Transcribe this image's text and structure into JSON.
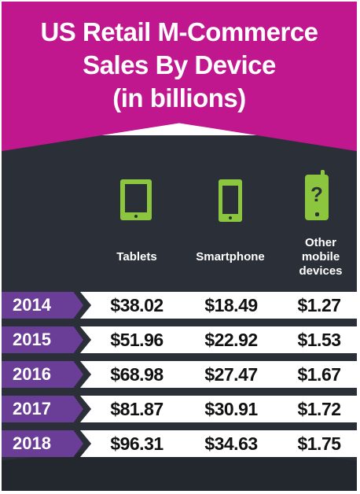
{
  "title_lines": [
    "US Retail M-Commerce",
    "Sales By Device",
    "(in billions)"
  ],
  "colors": {
    "banner": "#c0178f",
    "background": "#2b3038",
    "icon": "#8cc63f",
    "year_tag": "#6a3d96",
    "row": "#ffffff"
  },
  "icons": [
    "tablet-icon",
    "smartphone-icon",
    "other-mobile-device-icon"
  ],
  "chart_data": {
    "type": "table",
    "title": "US Retail M-Commerce Sales By Device (in billions)",
    "columns": [
      "Tablets",
      "Smartphone",
      "Other mobile devices"
    ],
    "rows": [
      {
        "year": "2014",
        "values": [
          "$38.02",
          "$18.49",
          "$1.27"
        ]
      },
      {
        "year": "2015",
        "values": [
          "$51.96",
          "$22.92",
          "$1.53"
        ]
      },
      {
        "year": "2016",
        "values": [
          "$68.98",
          "$27.47",
          "$1.67"
        ]
      },
      {
        "year": "2017",
        "values": [
          "$81.87",
          "$30.91",
          "$1.72"
        ]
      },
      {
        "year": "2018",
        "values": [
          "$96.31",
          "$34.63",
          "$1.75"
        ]
      }
    ]
  }
}
